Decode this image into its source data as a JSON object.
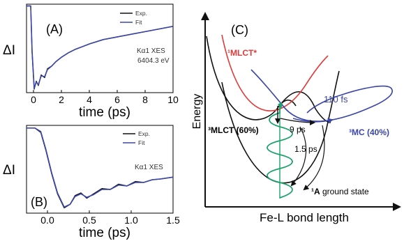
{
  "chart_data": [
    {
      "id": "A",
      "type": "line",
      "panel_label": "(A)",
      "xlabel": "time (ps)",
      "ylabel": "ΔI",
      "xlim": [
        -0.5,
        10
      ],
      "xticks": [
        "0",
        "2",
        "4",
        "6",
        "8",
        "10"
      ],
      "legend": [
        "Exp.",
        "Fit"
      ],
      "legend_position": "top-right",
      "annotation": [
        "Kα1 XES",
        "6404.3 eV"
      ],
      "series": [
        {
          "name": "Exp.",
          "color": "#111111",
          "x": [
            -0.5,
            -0.2,
            -0.1,
            0.05,
            0.2,
            0.35,
            0.55,
            0.8,
            1.0,
            1.3,
            1.6,
            2.0,
            2.5,
            3.0,
            3.5,
            4.0,
            5.0,
            6.0,
            7.0,
            8.0,
            9.0,
            10.0
          ],
          "y": [
            0.98,
            0.98,
            0.45,
            0.04,
            0.13,
            0.08,
            0.2,
            0.17,
            0.27,
            0.3,
            0.35,
            0.4,
            0.45,
            0.49,
            0.52,
            0.55,
            0.6,
            0.63,
            0.66,
            0.69,
            0.72,
            0.75
          ]
        },
        {
          "name": "Fit",
          "color": "#3b46a8",
          "x": [
            -0.5,
            -0.2,
            -0.1,
            0.05,
            0.2,
            0.35,
            0.55,
            0.8,
            1.0,
            1.3,
            1.6,
            2.0,
            2.5,
            3.0,
            3.5,
            4.0,
            5.0,
            6.0,
            7.0,
            8.0,
            9.0,
            10.0
          ],
          "y": [
            0.98,
            0.98,
            0.47,
            0.05,
            0.12,
            0.09,
            0.19,
            0.18,
            0.26,
            0.3,
            0.35,
            0.4,
            0.45,
            0.49,
            0.52,
            0.55,
            0.6,
            0.63,
            0.66,
            0.69,
            0.72,
            0.75
          ]
        }
      ]
    },
    {
      "id": "B",
      "type": "line",
      "panel_label": "(B)",
      "xlabel": "time (ps)",
      "ylabel": "ΔI",
      "xlim": [
        -0.25,
        1.5
      ],
      "xticks": [
        "0.0",
        "0.5",
        "1.0",
        "1.5"
      ],
      "legend": [
        "Exp.",
        "Fit"
      ],
      "legend_position": "top-right",
      "annotation": [
        "Kα1 XES"
      ],
      "series": [
        {
          "name": "Exp.",
          "color": "#111111",
          "x": [
            -0.25,
            -0.15,
            -0.08,
            -0.02,
            0.05,
            0.12,
            0.2,
            0.27,
            0.33,
            0.4,
            0.47,
            0.55,
            0.65,
            0.75,
            0.85,
            0.95,
            1.05,
            1.15,
            1.25,
            1.35,
            1.5
          ],
          "y": [
            0.97,
            0.97,
            0.92,
            0.72,
            0.45,
            0.22,
            0.06,
            0.1,
            0.2,
            0.23,
            0.17,
            0.22,
            0.28,
            0.27,
            0.33,
            0.31,
            0.36,
            0.35,
            0.38,
            0.39,
            0.41
          ]
        },
        {
          "name": "Fit",
          "color": "#3b46a8",
          "x": [
            -0.25,
            -0.15,
            -0.08,
            -0.02,
            0.05,
            0.12,
            0.2,
            0.27,
            0.33,
            0.4,
            0.47,
            0.55,
            0.65,
            0.75,
            0.85,
            0.95,
            1.05,
            1.15,
            1.25,
            1.35,
            1.5
          ],
          "y": [
            0.97,
            0.97,
            0.93,
            0.73,
            0.46,
            0.23,
            0.07,
            0.1,
            0.19,
            0.22,
            0.18,
            0.21,
            0.27,
            0.27,
            0.32,
            0.31,
            0.35,
            0.35,
            0.38,
            0.39,
            0.41
          ]
        }
      ]
    }
  ],
  "diagram": {
    "panel_label": "(C)",
    "ylabel": "Energy",
    "xlabel": "Fe-L bond length",
    "states": {
      "mlct_star": "¹MLCT*",
      "mlct3": "³MLCT (60%)",
      "mc3": "³MC (40%)",
      "ground_prefix": "¹A",
      "ground_suffix": " ground state"
    },
    "times": {
      "t110": "110 fs",
      "t9": "9 ps",
      "t15": "1.5 ps"
    },
    "colors": {
      "mlct_star": "#e03a3a",
      "mc": "#3b46a8",
      "excitation": "#1aa26a",
      "dark": "#111111"
    }
  }
}
